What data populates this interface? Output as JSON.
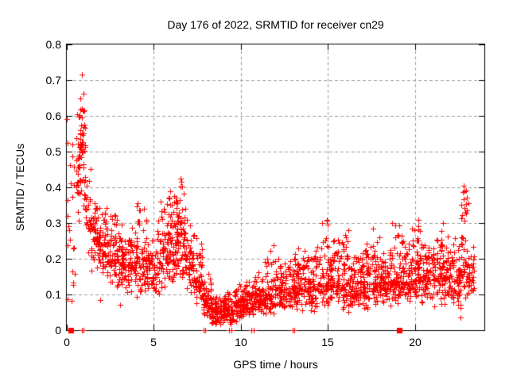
{
  "chart_data": {
    "type": "scatter",
    "title": "Day 176 of 2022, SRMTID for receiver cn29",
    "xlabel": "GPS time / hours",
    "ylabel": "SRMTID / TECUs",
    "xlim": [
      0,
      24
    ],
    "ylim": [
      0,
      0.8
    ],
    "grid": true,
    "legend": "none",
    "marker": "plus",
    "special_marker": "filled-square",
    "colors": {
      "marker": "#ff0000",
      "grid": "#9e9e9e",
      "axis": "#000000",
      "text": "#000000",
      "background": "#ffffff"
    },
    "xticks": [
      {
        "v": 0,
        "label": "0"
      },
      {
        "v": 5,
        "label": "5"
      },
      {
        "v": 10,
        "label": "10"
      },
      {
        "v": 15,
        "label": "15"
      },
      {
        "v": 20,
        "label": "20"
      }
    ],
    "yticks": [
      {
        "v": 0.0,
        "label": "0"
      },
      {
        "v": 0.1,
        "label": "0.1"
      },
      {
        "v": 0.2,
        "label": "0.2"
      },
      {
        "v": 0.3,
        "label": "0.3"
      },
      {
        "v": 0.4,
        "label": "0.4"
      },
      {
        "v": 0.5,
        "label": "0.5"
      },
      {
        "v": 0.6,
        "label": "0.6"
      },
      {
        "v": 0.7,
        "label": "0.7"
      },
      {
        "v": 0.8,
        "label": "0.8"
      }
    ],
    "density_segments_format": [
      "t_start_hours",
      "t_end_hours",
      "n_points",
      "y_min",
      "y_max",
      "y_peak"
    ],
    "density_segments": [
      [
        0.0,
        0.5,
        22,
        0.02,
        0.66,
        0.35
      ],
      [
        0.5,
        0.8,
        28,
        0.3,
        0.62,
        0.47
      ],
      [
        0.72,
        1.05,
        45,
        0.34,
        0.63,
        0.5
      ],
      [
        1.0,
        1.4,
        30,
        0.2,
        0.45,
        0.3
      ],
      [
        1.4,
        1.8,
        42,
        0.16,
        0.38,
        0.26
      ],
      [
        1.8,
        2.3,
        55,
        0.14,
        0.35,
        0.24
      ],
      [
        2.3,
        2.9,
        60,
        0.12,
        0.33,
        0.21
      ],
      [
        2.9,
        3.5,
        58,
        0.1,
        0.3,
        0.19
      ],
      [
        3.5,
        4.0,
        52,
        0.1,
        0.3,
        0.18
      ],
      [
        4.0,
        4.6,
        60,
        0.09,
        0.36,
        0.19
      ],
      [
        4.6,
        5.2,
        55,
        0.09,
        0.28,
        0.17
      ],
      [
        5.2,
        5.8,
        60,
        0.1,
        0.37,
        0.2
      ],
      [
        5.8,
        6.3,
        62,
        0.12,
        0.4,
        0.23
      ],
      [
        6.3,
        6.8,
        65,
        0.14,
        0.43,
        0.26
      ],
      [
        6.8,
        7.3,
        55,
        0.1,
        0.33,
        0.2
      ],
      [
        7.3,
        7.8,
        48,
        0.06,
        0.26,
        0.14
      ],
      [
        7.8,
        8.3,
        55,
        0.03,
        0.17,
        0.08
      ],
      [
        8.3,
        9.0,
        72,
        0.015,
        0.1,
        0.05
      ],
      [
        9.0,
        9.6,
        65,
        0.015,
        0.11,
        0.06
      ],
      [
        9.6,
        10.2,
        65,
        0.02,
        0.13,
        0.07
      ],
      [
        10.2,
        10.8,
        62,
        0.03,
        0.14,
        0.08
      ],
      [
        10.8,
        11.4,
        62,
        0.04,
        0.17,
        0.09
      ],
      [
        11.4,
        12.0,
        62,
        0.04,
        0.24,
        0.1
      ],
      [
        12.0,
        12.6,
        62,
        0.05,
        0.2,
        0.11
      ],
      [
        12.6,
        13.2,
        62,
        0.05,
        0.22,
        0.11
      ],
      [
        13.2,
        13.8,
        62,
        0.05,
        0.25,
        0.12
      ],
      [
        13.8,
        14.4,
        62,
        0.05,
        0.24,
        0.12
      ],
      [
        14.4,
        15.1,
        64,
        0.06,
        0.31,
        0.13
      ],
      [
        15.1,
        15.7,
        62,
        0.06,
        0.26,
        0.13
      ],
      [
        15.7,
        16.3,
        62,
        0.05,
        0.28,
        0.12
      ],
      [
        16.3,
        16.9,
        62,
        0.06,
        0.22,
        0.12
      ],
      [
        16.9,
        17.5,
        62,
        0.06,
        0.25,
        0.13
      ],
      [
        17.5,
        18.1,
        62,
        0.06,
        0.28,
        0.13
      ],
      [
        18.1,
        18.7,
        62,
        0.06,
        0.26,
        0.13
      ],
      [
        18.7,
        19.3,
        62,
        0.07,
        0.3,
        0.14
      ],
      [
        19.3,
        19.9,
        62,
        0.07,
        0.28,
        0.14
      ],
      [
        19.9,
        20.5,
        62,
        0.07,
        0.31,
        0.15
      ],
      [
        20.5,
        21.1,
        62,
        0.07,
        0.25,
        0.15
      ],
      [
        21.1,
        21.7,
        62,
        0.06,
        0.3,
        0.15
      ],
      [
        21.7,
        22.3,
        60,
        0.07,
        0.28,
        0.15
      ],
      [
        22.3,
        22.65,
        38,
        0.05,
        0.25,
        0.14
      ],
      [
        22.65,
        23.05,
        45,
        0.08,
        0.405,
        0.19
      ],
      [
        23.05,
        23.4,
        36,
        0.08,
        0.24,
        0.14
      ]
    ],
    "notable_points": [
      [
        0.85,
        0.715
      ],
      [
        0.95,
        0.662
      ],
      [
        0.78,
        0.648
      ],
      [
        0.6,
        0.605
      ],
      [
        0.3,
        0.52
      ],
      [
        1.37,
        0.452
      ],
      [
        6.52,
        0.425
      ],
      [
        6.58,
        0.415
      ],
      [
        14.95,
        0.31
      ],
      [
        15.0,
        0.295
      ],
      [
        17.6,
        0.285
      ],
      [
        18.72,
        0.3
      ],
      [
        19.85,
        0.285
      ],
      [
        20.22,
        0.31
      ],
      [
        21.62,
        0.3
      ],
      [
        22.8,
        0.405
      ],
      [
        22.86,
        0.39
      ],
      [
        23.1,
        0.355
      ],
      [
        1.92,
        0.085
      ],
      [
        3.05,
        0.072
      ],
      [
        9.42,
        0.018
      ],
      [
        22.62,
        0.035
      ]
    ],
    "zero_value_plus_times": [
      0.88,
      0.96,
      7.85,
      7.94,
      9.33,
      9.46,
      10.62,
      10.74,
      12.97,
      13.09
    ],
    "square_marker_times": [
      0.22,
      19.1
    ],
    "random_seed": 176
  }
}
